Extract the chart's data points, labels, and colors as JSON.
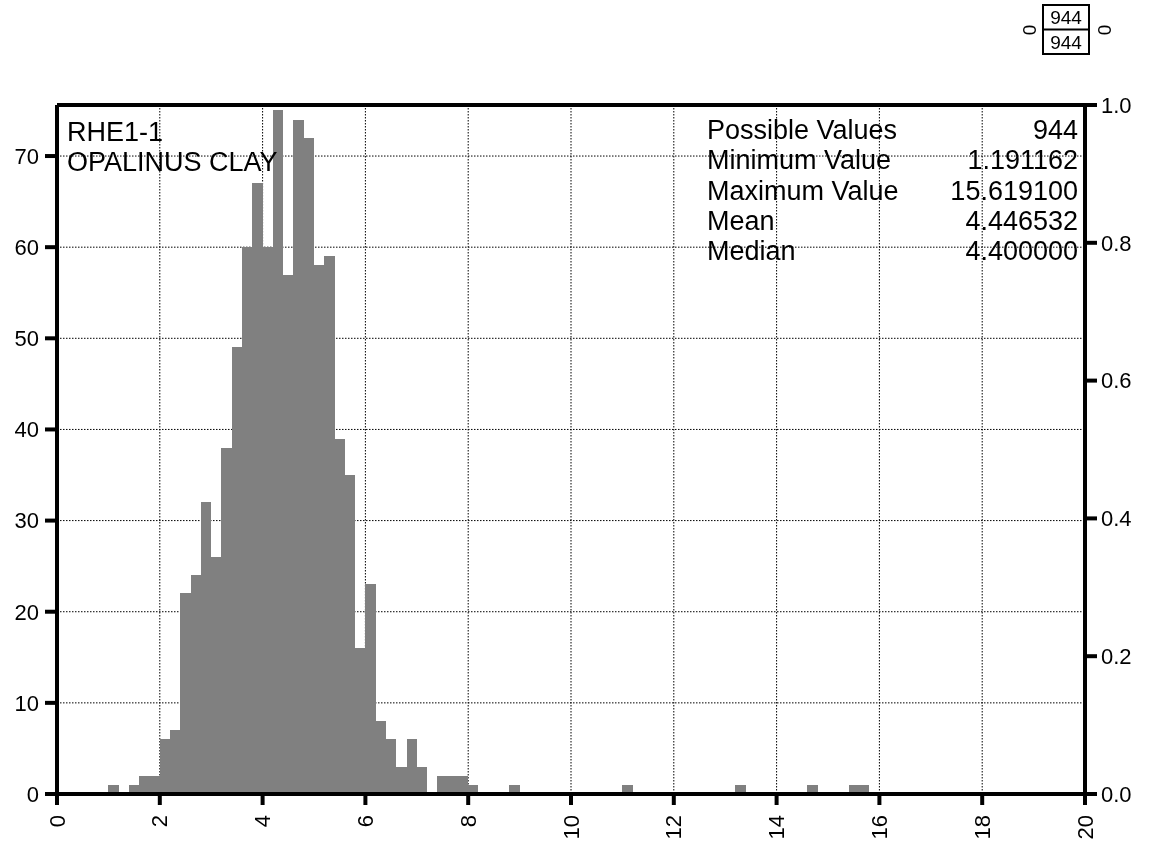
{
  "chart_data": {
    "type": "histogram",
    "bins": [
      1,
      1.2,
      1.4,
      1.6,
      1.8,
      2,
      2.2,
      2.4,
      2.6,
      2.8,
      3,
      3.2,
      3.4,
      3.6,
      3.8,
      4,
      4.2,
      4.4,
      4.6,
      4.8,
      5,
      5.2,
      5.4,
      5.6,
      5.8,
      6,
      6.2,
      6.4,
      6.6,
      6.8,
      7,
      7.2,
      7.4,
      7.6,
      7.8,
      8,
      8.2,
      8.4,
      8.6,
      8.8,
      9,
      9.2,
      9.4,
      9.6,
      9.8,
      10,
      10.2,
      10.4,
      10.6,
      10.8,
      11,
      11.2,
      11.4,
      11.6,
      11.8,
      12,
      12.2,
      12.4,
      12.6,
      12.8,
      13,
      13.2,
      13.4,
      13.6,
      13.8,
      14,
      14.2,
      14.4,
      14.6,
      14.8,
      15,
      15.2,
      15.4,
      15.6,
      15.8
    ],
    "values": [
      1,
      0,
      1,
      2,
      2,
      6,
      7,
      22,
      24,
      32,
      26,
      38,
      49,
      60,
      67,
      60,
      75,
      57,
      74,
      72,
      58,
      59,
      39,
      35,
      16,
      23,
      8,
      6,
      3,
      6,
      3,
      0,
      2,
      2,
      2,
      1,
      0,
      0,
      0,
      1,
      0,
      0,
      0,
      0,
      0,
      0,
      0,
      0,
      0,
      0,
      1,
      0,
      0,
      0,
      0,
      0,
      0,
      0,
      0,
      0,
      0,
      1,
      0,
      0,
      0,
      0,
      0,
      0,
      1,
      0,
      0,
      0,
      1,
      1
    ],
    "color": "#808080",
    "xlim": [
      0,
      20
    ],
    "xticks": [
      0,
      2,
      4,
      6,
      8,
      10,
      12,
      14,
      16,
      18,
      20
    ],
    "ylim": [
      0,
      75.6
    ],
    "yticks": [
      0,
      10,
      20,
      30,
      40,
      50,
      60,
      70
    ],
    "y2lim": [
      0,
      1
    ],
    "y2ticks": [
      {
        "value": 0,
        "label": "0.0"
      },
      0.2,
      0.4,
      0.6,
      0.8,
      {
        "value": 1,
        "label": "1.0"
      }
    ],
    "grid": true,
    "annotations": [
      "RHE1-1",
      "OPALINUS CLAY",
      "Possible Values",
      "944",
      "Minimum Value",
      "1.191162",
      "Maximum Value",
      "15.619100",
      "Mean",
      "4.446532",
      "Median",
      "4.400000",
      "0",
      "944",
      "944",
      "0"
    ]
  }
}
